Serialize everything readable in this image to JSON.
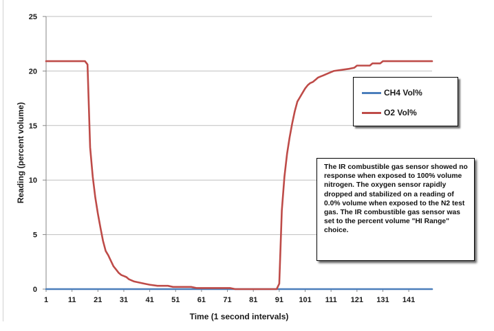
{
  "chart_data": {
    "type": "line",
    "title": "",
    "xlabel": "Time (1 second intervals)",
    "ylabel": "Reading (percent volume)",
    "xlim": [
      1,
      150
    ],
    "ylim": [
      0,
      25
    ],
    "y_ticks": [
      0,
      5,
      10,
      15,
      20,
      25
    ],
    "x_ticks": [
      1,
      11,
      21,
      31,
      41,
      51,
      61,
      71,
      81,
      91,
      101,
      111,
      121,
      131,
      141
    ],
    "grid": "horizontal",
    "legend_position": "right",
    "series": [
      {
        "name": "CH4 Vol%",
        "color": "#4a7ebb",
        "points": [
          [
            1,
            0.0
          ],
          [
            150,
            0.0
          ]
        ]
      },
      {
        "name": "O2 Vol%",
        "color": "#be4b48",
        "points": [
          [
            1,
            20.9
          ],
          [
            10,
            20.9
          ],
          [
            16,
            20.9
          ],
          [
            17,
            20.6
          ],
          [
            18,
            13.0
          ],
          [
            19,
            10.3
          ],
          [
            20,
            8.4
          ],
          [
            21,
            6.9
          ],
          [
            22,
            5.6
          ],
          [
            23,
            4.4
          ],
          [
            24,
            3.5
          ],
          [
            25,
            3.1
          ],
          [
            26,
            2.6
          ],
          [
            27,
            2.1
          ],
          [
            28,
            1.8
          ],
          [
            29,
            1.5
          ],
          [
            30,
            1.3
          ],
          [
            31,
            1.2
          ],
          [
            32,
            1.1
          ],
          [
            33,
            0.9
          ],
          [
            34,
            0.8
          ],
          [
            35,
            0.7
          ],
          [
            37,
            0.6
          ],
          [
            39,
            0.5
          ],
          [
            41,
            0.4
          ],
          [
            44,
            0.3
          ],
          [
            48,
            0.3
          ],
          [
            50,
            0.2
          ],
          [
            57,
            0.2
          ],
          [
            59,
            0.1
          ],
          [
            72,
            0.1
          ],
          [
            74,
            0.0
          ],
          [
            90,
            0.0
          ],
          [
            91,
            0.5
          ],
          [
            92,
            7.2
          ],
          [
            93,
            10.3
          ],
          [
            94,
            12.4
          ],
          [
            95,
            13.9
          ],
          [
            96,
            15.2
          ],
          [
            97,
            16.3
          ],
          [
            98,
            17.2
          ],
          [
            99,
            17.6
          ],
          [
            100,
            18.0
          ],
          [
            101,
            18.4
          ],
          [
            102,
            18.7
          ],
          [
            103,
            18.9
          ],
          [
            104,
            19.0
          ],
          [
            105,
            19.2
          ],
          [
            106,
            19.4
          ],
          [
            107,
            19.5
          ],
          [
            108,
            19.6
          ],
          [
            110,
            19.8
          ],
          [
            112,
            20.0
          ],
          [
            115,
            20.1
          ],
          [
            118,
            20.2
          ],
          [
            120,
            20.3
          ],
          [
            121,
            20.5
          ],
          [
            126,
            20.5
          ],
          [
            127,
            20.7
          ],
          [
            130,
            20.7
          ],
          [
            131,
            20.9
          ],
          [
            150,
            20.9
          ]
        ]
      }
    ],
    "annotation": "The IR combustible gas sensor showed no response  when exposed to 100% volume  nitrogen.  The oxygen sensor rapidly dropped and stabilized on a reading of 0.0% volume when exposed to the N2 test gas.  The IR combustible gas sensor was  set to the percent volume \"HI Range\"  choice."
  }
}
